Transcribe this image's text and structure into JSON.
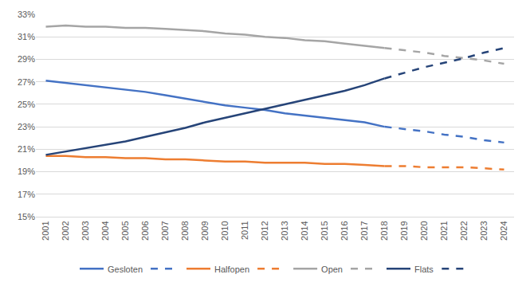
{
  "chart_data": {
    "type": "line",
    "categories": [
      "2001",
      "2002",
      "2003",
      "2004",
      "2005",
      "2006",
      "2007",
      "2008",
      "2009",
      "2010",
      "2011",
      "2012",
      "2013",
      "2014",
      "2015",
      "2016",
      "2017",
      "2018",
      "2019",
      "2020",
      "2021",
      "2022",
      "2023",
      "2024"
    ],
    "series": [
      {
        "name": "Gesloten",
        "color": "#4472c4",
        "line_style": "solid",
        "values": [
          27.1,
          26.9,
          26.7,
          26.5,
          26.3,
          26.1,
          25.8,
          25.5,
          25.2,
          24.9,
          24.7,
          24.5,
          24.2,
          24.0,
          23.8,
          23.6,
          23.4,
          23.0,
          null,
          null,
          null,
          null,
          null,
          null
        ]
      },
      {
        "color": "#4472c4",
        "line_style": "dashed",
        "values": [
          null,
          null,
          null,
          null,
          null,
          null,
          null,
          null,
          null,
          null,
          null,
          null,
          null,
          null,
          null,
          null,
          null,
          23.0,
          22.8,
          22.6,
          22.3,
          22.1,
          21.8,
          21.6
        ]
      },
      {
        "name": "Halfopen",
        "color": "#ed7d31",
        "line_style": "solid",
        "values": [
          20.4,
          20.4,
          20.3,
          20.3,
          20.2,
          20.2,
          20.1,
          20.1,
          20.0,
          19.9,
          19.9,
          19.8,
          19.8,
          19.8,
          19.7,
          19.7,
          19.6,
          19.5,
          null,
          null,
          null,
          null,
          null,
          null
        ]
      },
      {
        "color": "#ed7d31",
        "line_style": "dashed",
        "values": [
          null,
          null,
          null,
          null,
          null,
          null,
          null,
          null,
          null,
          null,
          null,
          null,
          null,
          null,
          null,
          null,
          null,
          19.5,
          19.5,
          19.4,
          19.4,
          19.4,
          19.3,
          19.2
        ]
      },
      {
        "name": "Open",
        "color": "#a5a5a5",
        "line_style": "solid",
        "values": [
          31.9,
          32.0,
          31.9,
          31.9,
          31.8,
          31.8,
          31.7,
          31.6,
          31.5,
          31.3,
          31.2,
          31.0,
          30.9,
          30.7,
          30.6,
          30.4,
          30.2,
          30.0,
          null,
          null,
          null,
          null,
          null,
          null
        ]
      },
      {
        "color": "#a5a5a5",
        "line_style": "dashed",
        "values": [
          null,
          null,
          null,
          null,
          null,
          null,
          null,
          null,
          null,
          null,
          null,
          null,
          null,
          null,
          null,
          null,
          null,
          30.0,
          29.8,
          29.6,
          29.3,
          29.1,
          28.9,
          28.6
        ]
      },
      {
        "name": "Flats",
        "color": "#264478",
        "line_style": "solid",
        "values": [
          20.5,
          20.8,
          21.1,
          21.4,
          21.7,
          22.1,
          22.5,
          22.9,
          23.4,
          23.8,
          24.2,
          24.6,
          25.0,
          25.4,
          25.8,
          26.2,
          26.7,
          27.3,
          null,
          null,
          null,
          null,
          null,
          null
        ]
      },
      {
        "color": "#264478",
        "line_style": "dashed",
        "values": [
          null,
          null,
          null,
          null,
          null,
          null,
          null,
          null,
          null,
          null,
          null,
          null,
          null,
          null,
          null,
          null,
          null,
          27.3,
          27.8,
          28.3,
          28.7,
          29.1,
          29.6,
          30.0
        ]
      }
    ],
    "ylim": [
      15,
      33
    ],
    "yticks": [
      {
        "value": 15,
        "label": "15%"
      },
      {
        "value": 17,
        "label": "17%"
      },
      {
        "value": 19,
        "label": "19%"
      },
      {
        "value": 21,
        "label": "21%"
      },
      {
        "value": 23,
        "label": "23%"
      },
      {
        "value": 25,
        "label": "25%"
      },
      {
        "value": 27,
        "label": "27%"
      },
      {
        "value": 29,
        "label": "29%"
      },
      {
        "value": 31,
        "label": "31%"
      },
      {
        "value": 33,
        "label": "33%"
      }
    ],
    "grid": true,
    "legend": "bottom"
  }
}
